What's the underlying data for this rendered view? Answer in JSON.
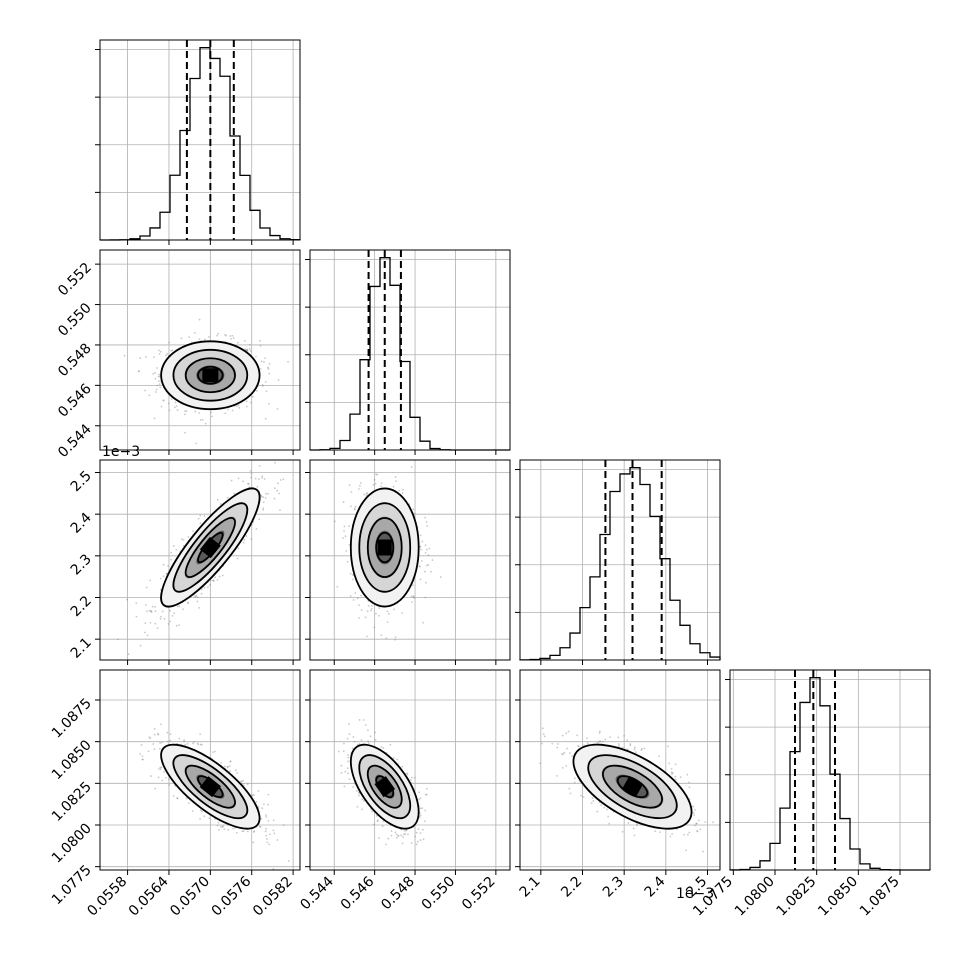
{
  "chart_data": {
    "type": "corner",
    "description": "Corner plot of 4 parameters: 1-D marginal histograms on the diagonal with 16/50/84% quantile lines, 2-D density/contour panels below.",
    "params": [
      {
        "median": 0.057,
        "q16": 0.05666,
        "q84": 0.05734,
        "range": [
          0.0554,
          0.0583
        ],
        "ticks": [
          0.0558,
          0.0564,
          0.057,
          0.0576,
          0.0582
        ],
        "tick_labels": [
          "0.0558",
          "0.0564",
          "0.0570",
          "0.0576",
          "0.0582"
        ],
        "offset_label": ""
      },
      {
        "median": 0.5465,
        "q16": 0.5457,
        "q84": 0.5473,
        "range": [
          0.5428,
          0.5527
        ],
        "ticks": [
          0.544,
          0.546,
          0.548,
          0.55,
          0.552
        ],
        "tick_labels": [
          "0.544",
          "0.546",
          "0.548",
          "0.550",
          "0.552"
        ],
        "offset_label": ""
      },
      {
        "median": 2.32,
        "q16": 2.255,
        "q84": 2.39,
        "range": [
          2.05,
          2.53
        ],
        "ticks": [
          2.1,
          2.2,
          2.3,
          2.4,
          2.5
        ],
        "tick_labels": [
          "2.1",
          "2.2",
          "2.3",
          "2.4",
          "2.5"
        ],
        "offset_label": "1e−3"
      },
      {
        "median": 1.0823,
        "q16": 1.0812,
        "q84": 1.0836,
        "range": [
          1.0773,
          1.0893
        ],
        "ticks": [
          1.0775,
          1.08,
          1.0825,
          1.085,
          1.0875
        ],
        "tick_labels": [
          "1.0775",
          "1.0800",
          "1.0825",
          "1.0850",
          "1.0875"
        ],
        "offset_label": ""
      }
    ],
    "correlations": [
      {
        "pair": [
          0,
          1
        ],
        "rho": 0.0
      },
      {
        "pair": [
          0,
          2
        ],
        "rho": 0.85
      },
      {
        "pair": [
          1,
          2
        ],
        "rho": 0.0
      },
      {
        "pair": [
          0,
          3
        ],
        "rho": -0.75
      },
      {
        "pair": [
          1,
          3
        ],
        "rho": -0.6
      },
      {
        "pair": [
          2,
          3
        ],
        "rho": -0.6
      }
    ],
    "histogram_bins": 20,
    "contour_levels_sigma": [
      0.5,
      1.0,
      1.5,
      2.0
    ],
    "grid": true
  }
}
